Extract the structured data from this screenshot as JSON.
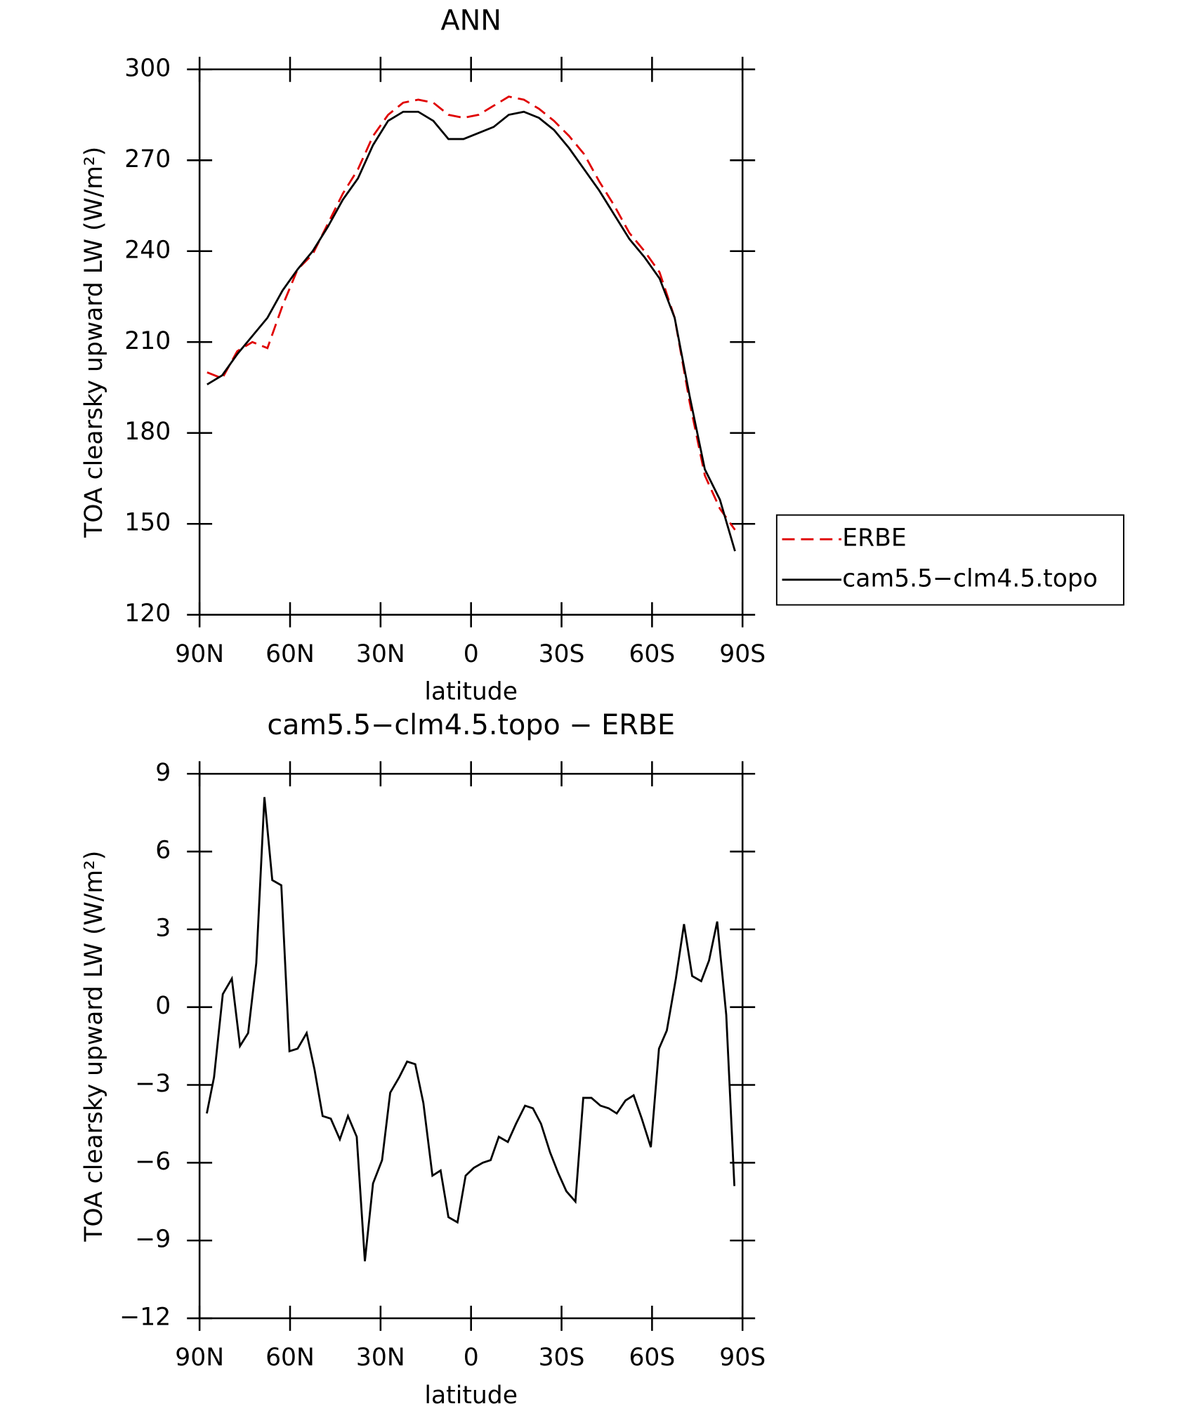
{
  "chart_data": [
    {
      "type": "line",
      "title": "ANN",
      "x_label": "latitude",
      "y_label": "TOA clearsky upward LW (W/m²)",
      "xlim": [
        90,
        -90
      ],
      "xticks": [
        {
          "value": 90,
          "label": "90N"
        },
        {
          "value": 60,
          "label": "60N"
        },
        {
          "value": 30,
          "label": "30N"
        },
        0,
        {
          "value": -30,
          "label": "30S"
        },
        {
          "value": -60,
          "label": "60S"
        },
        {
          "value": -90,
          "label": "90S"
        }
      ],
      "ylim": [
        120,
        300
      ],
      "yticks": [
        120,
        150,
        180,
        210,
        240,
        270,
        300
      ],
      "legend": "right",
      "x": [
        87.5,
        82.5,
        77.5,
        72.5,
        67.5,
        62.5,
        57.5,
        52.5,
        47.5,
        42.5,
        37.5,
        32.5,
        27.5,
        22.5,
        17.5,
        12.5,
        7.5,
        2.5,
        -2.5,
        -7.5,
        -12.5,
        -17.5,
        -22.5,
        -27.5,
        -32.5,
        -37.5,
        -42.5,
        -47.5,
        -52.5,
        -57.5,
        -62.5,
        -67.5,
        -72.5,
        -77.5,
        -82.5,
        -87.5
      ],
      "series": [
        {
          "name": "ERBE",
          "color": "#e00000",
          "dash": true,
          "values": [
            200,
            198,
            207,
            210,
            208,
            222,
            234,
            239,
            249,
            259,
            267,
            278,
            285,
            289,
            290,
            289,
            285,
            284,
            285,
            288,
            291,
            290,
            287,
            283,
            278,
            272,
            263,
            255,
            246,
            240,
            233,
            218,
            190,
            166,
            155,
            148
          ]
        },
        {
          "name": "cam5.5−clm4.5.topo",
          "color": "#000000",
          "dash": false,
          "values": [
            196,
            199,
            206,
            212,
            218,
            227,
            234,
            240,
            248,
            257,
            264,
            275,
            283,
            286,
            286,
            283,
            277,
            277,
            279,
            281,
            285,
            286,
            284,
            280,
            274,
            267,
            260,
            252,
            244,
            238,
            231,
            218,
            192,
            168,
            158,
            141
          ]
        }
      ]
    },
    {
      "type": "line",
      "title": "cam5.5−clm4.5.topo − ERBE",
      "x_label": "latitude",
      "y_label": "TOA clearsky upward LW (W/m²)",
      "xlim": [
        90,
        -90
      ],
      "xticks": [
        {
          "value": 90,
          "label": "90N"
        },
        {
          "value": 60,
          "label": "60N"
        },
        {
          "value": 30,
          "label": "30N"
        },
        0,
        {
          "value": -30,
          "label": "30S"
        },
        {
          "value": -60,
          "label": "60S"
        },
        {
          "value": -90,
          "label": "90S"
        }
      ],
      "ylim": [
        -12,
        9
      ],
      "yticks": [
        {
          "value": -12,
          "label": "−12"
        },
        {
          "value": -9,
          "label": "−9"
        },
        {
          "value": -6,
          "label": "−6"
        },
        {
          "value": -3,
          "label": "−3"
        },
        0,
        3,
        6,
        9
      ],
      "x": [
        87.6,
        85.2,
        82.3,
        79.3,
        76.6,
        73.9,
        71.2,
        68.5,
        65.9,
        62.9,
        60.2,
        57.5,
        54.5,
        51.9,
        49.2,
        46.5,
        43.5,
        40.8,
        37.9,
        35.2,
        32.5,
        29.5,
        26.8,
        23.8,
        21.2,
        18.5,
        15.8,
        12.8,
        10.1,
        7.5,
        4.5,
        1.8,
        -0.9,
        -3.9,
        -6.5,
        -9.2,
        -12.2,
        -14.9,
        -17.9,
        -20.5,
        -23.2,
        -26.2,
        -28.9,
        -31.6,
        -34.6,
        -37.2,
        -39.9,
        -42.9,
        -45.6,
        -48.3,
        -51.2,
        -53.9,
        -56.6,
        -59.6,
        -62.3,
        -64.9,
        -67.9,
        -70.6,
        -73.3,
        -76.3,
        -78.9,
        -81.6,
        -84.6,
        -87.3
      ],
      "series": [
        {
          "color": "#000000",
          "dash": false,
          "values": [
            -4.1,
            -2.7,
            0.5,
            1.1,
            -1.5,
            -1.0,
            1.7,
            8.1,
            4.9,
            4.7,
            -1.7,
            -1.6,
            -1.0,
            -2.4,
            -4.2,
            -4.3,
            -5.1,
            -4.2,
            -5.0,
            -9.8,
            -6.8,
            -5.9,
            -3.3,
            -2.7,
            -2.1,
            -2.2,
            -3.7,
            -6.5,
            -6.3,
            -8.1,
            -8.3,
            -6.5,
            -6.2,
            -6.0,
            -5.9,
            -5.0,
            -5.2,
            -4.5,
            -3.8,
            -3.9,
            -4.5,
            -5.6,
            -6.4,
            -7.1,
            -7.5,
            -3.5,
            -3.5,
            -3.8,
            -3.9,
            -4.1,
            -3.6,
            -3.4,
            -4.3,
            -5.4,
            -1.6,
            -0.9,
            1.1,
            3.2,
            1.2,
            1.0,
            1.8,
            3.3,
            -0.3,
            -6.9
          ]
        }
      ]
    }
  ]
}
